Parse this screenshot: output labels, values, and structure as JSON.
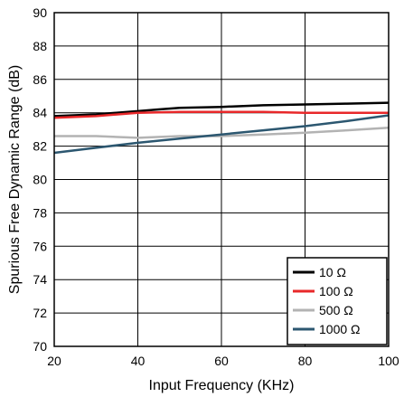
{
  "chart_data": {
    "type": "line",
    "title": "",
    "xlabel": "Input Frequency (KHz)",
    "ylabel": "Spurious Free Dynamic Range (dB)",
    "xlim": [
      20,
      100
    ],
    "ylim": [
      70,
      90
    ],
    "x_ticks": [
      20,
      40,
      60,
      80,
      100
    ],
    "y_ticks": [
      70,
      72,
      74,
      76,
      78,
      80,
      82,
      84,
      86,
      88,
      90
    ],
    "grid": true,
    "legend_position": "bottom-right",
    "series": [
      {
        "name": "10 Ω",
        "color": "#000000",
        "x": [
          20,
          30,
          40,
          45,
          50,
          60,
          70,
          80,
          90,
          100
        ],
        "y": [
          83.8,
          83.9,
          84.1,
          84.2,
          84.3,
          84.35,
          84.45,
          84.5,
          84.55,
          84.6
        ]
      },
      {
        "name": "100 Ω",
        "color": "#e8282a",
        "x": [
          20,
          30,
          40,
          50,
          60,
          70,
          80,
          90,
          100
        ],
        "y": [
          83.7,
          83.8,
          84.0,
          84.05,
          84.05,
          84.05,
          84.0,
          84.0,
          84.0
        ]
      },
      {
        "name": "500 Ω",
        "color": "#b3b3b3",
        "x": [
          20,
          30,
          40,
          50,
          60,
          70,
          80,
          90,
          100
        ],
        "y": [
          82.6,
          82.6,
          82.5,
          82.6,
          82.6,
          82.7,
          82.8,
          82.95,
          83.1
        ]
      },
      {
        "name": "1000 Ω",
        "color": "#2c5770",
        "x": [
          20,
          30,
          40,
          50,
          60,
          70,
          80,
          90,
          100
        ],
        "y": [
          81.6,
          81.9,
          82.2,
          82.45,
          82.7,
          82.95,
          83.2,
          83.5,
          83.85
        ]
      }
    ]
  }
}
